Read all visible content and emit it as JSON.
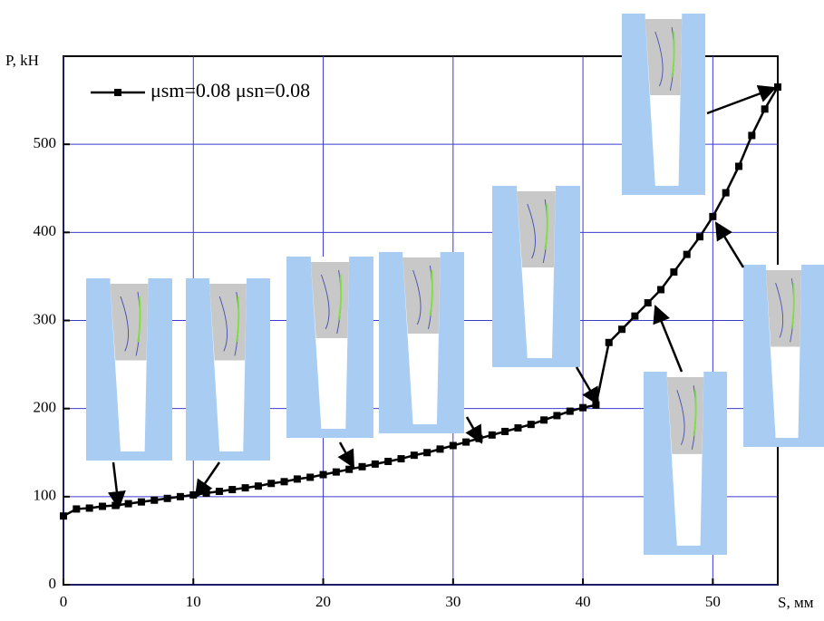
{
  "chart_data": {
    "type": "line",
    "x_label": "S, мм",
    "y_label": "P, kH",
    "xlim": [
      0,
      55
    ],
    "ylim": [
      0,
      600
    ],
    "xticks": [
      0,
      10,
      20,
      30,
      40,
      50
    ],
    "yticks": [
      0,
      100,
      200,
      300,
      400,
      500
    ],
    "grid": true,
    "legend": "top-left",
    "x": [
      0,
      1,
      2,
      3,
      4,
      5,
      6,
      7,
      8,
      9,
      10,
      11,
      12,
      13,
      14,
      15,
      16,
      17,
      18,
      19,
      20,
      21,
      22,
      23,
      24,
      25,
      26,
      27,
      28,
      29,
      30,
      31,
      32,
      33,
      34,
      35,
      36,
      37,
      38,
      39,
      40,
      41,
      42,
      43,
      44,
      45,
      46,
      47,
      48,
      49,
      50,
      51,
      52,
      53,
      54,
      55
    ],
    "series": [
      {
        "name": "μsm=0.08 μsn=0.08",
        "color": "#000000",
        "values": [
          78,
          86,
          87,
          89,
          90,
          92,
          94,
          96,
          98,
          100,
          102,
          104,
          106,
          108,
          110,
          112,
          115,
          117,
          120,
          122,
          125,
          128,
          131,
          134,
          137,
          140,
          143,
          147,
          150,
          154,
          158,
          162,
          166,
          170,
          174,
          178,
          182,
          187,
          192,
          197,
          201,
          204,
          275,
          290,
          305,
          320,
          335,
          355,
          375,
          395,
          418,
          445,
          475,
          510,
          540,
          565
        ]
      }
    ]
  }
}
